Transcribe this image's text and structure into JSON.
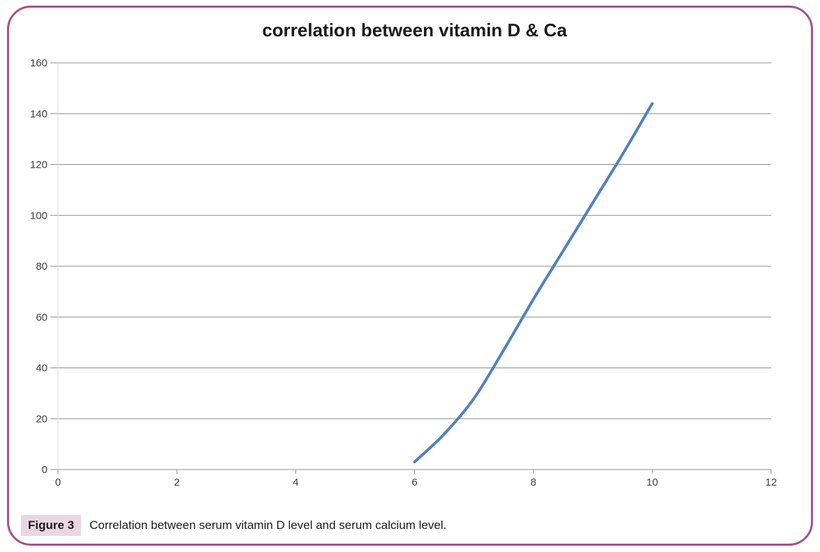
{
  "figure": {
    "caption_label": "Figure 3",
    "caption_text": "Correlation between serum vitamin D level and serum calcium level."
  },
  "colors": {
    "border": "#A3538C",
    "caption_label_bg": "#EBD7E4",
    "line": "#4F81BD",
    "grid": "#8C8C8C",
    "axis": "#D9D9D9",
    "tick_text": "#3F3F3F",
    "title_text": "#1A1A1A"
  },
  "chart_data": {
    "type": "line",
    "title": "correlation between vitamin D & Ca",
    "xlabel": "",
    "ylabel": "",
    "x": [
      6,
      6.5,
      7,
      7.5,
      8,
      8.5,
      9,
      9.5,
      10
    ],
    "y": [
      3,
      14,
      28,
      47,
      67,
      86,
      105,
      124,
      144
    ],
    "xlim": [
      0,
      12
    ],
    "ylim": [
      0,
      160
    ],
    "x_ticks": [
      0,
      2,
      4,
      6,
      8,
      10,
      12
    ],
    "y_ticks": [
      0,
      20,
      40,
      60,
      80,
      100,
      120,
      140,
      160
    ],
    "grid": "horizontal",
    "legend": "none",
    "smooth": true
  }
}
